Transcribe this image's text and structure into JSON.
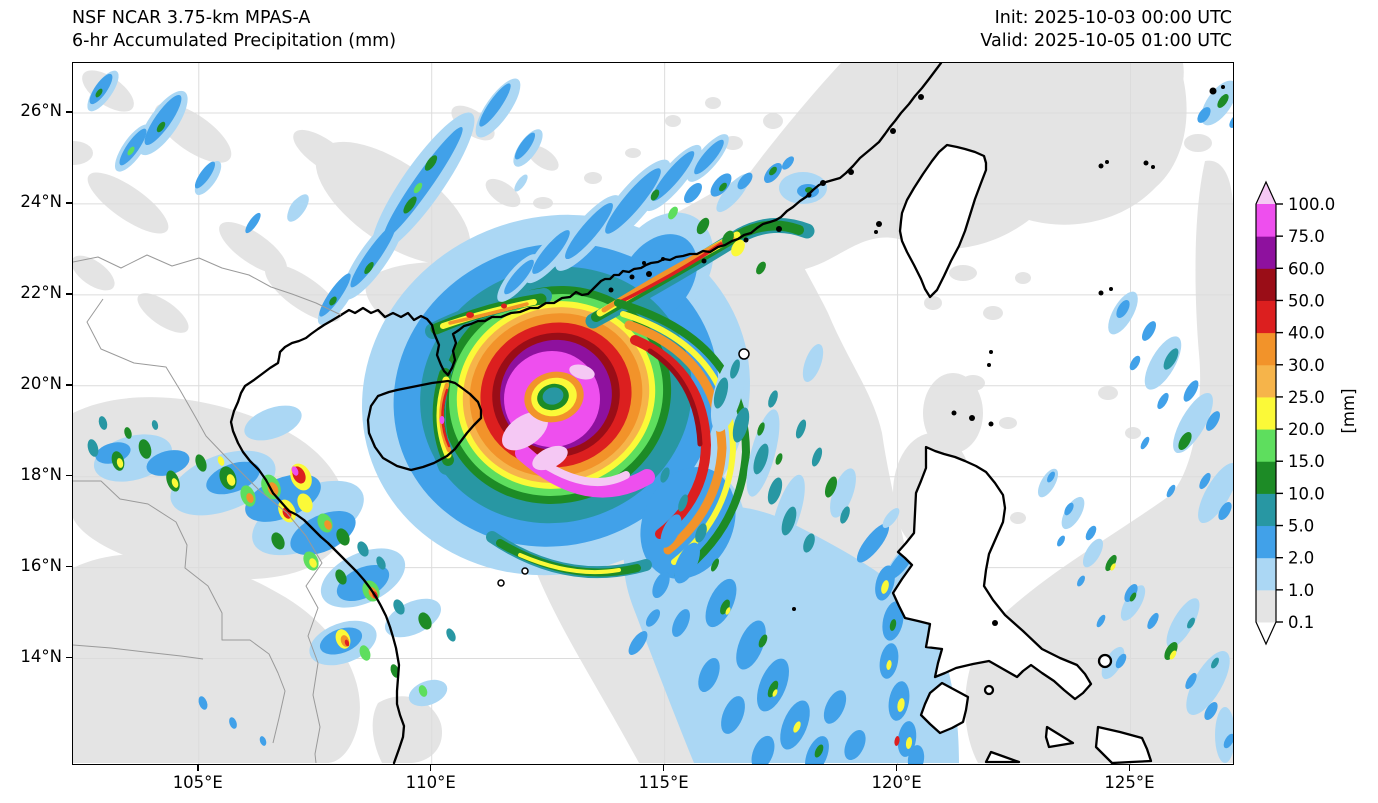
{
  "header": {
    "title_line1": "NSF NCAR 3.75-km MPAS-A",
    "title_line2": "6-hr Accumulated Precipitation (mm)",
    "init": "Init: 2025-10-03 00:00 UTC",
    "valid": "Valid: 2025-10-05 01:00 UTC"
  },
  "axes": {
    "extent": {
      "lon_min": 102.3,
      "lon_max": 127.2,
      "lat_min": 11.68,
      "lat_max": 27.1
    },
    "lon_ticks": [
      {
        "label": "105°E",
        "deg": 105
      },
      {
        "label": "110°E",
        "deg": 110
      },
      {
        "label": "115°E",
        "deg": 115
      },
      {
        "label": "120°E",
        "deg": 120
      },
      {
        "label": "125°E",
        "deg": 125
      }
    ],
    "lat_ticks": [
      {
        "label": "26°N",
        "deg": 26
      },
      {
        "label": "24°N",
        "deg": 24
      },
      {
        "label": "22°N",
        "deg": 22
      },
      {
        "label": "20°N",
        "deg": 20
      },
      {
        "label": "18°N",
        "deg": 18
      },
      {
        "label": "16°N",
        "deg": 16
      },
      {
        "label": "14°N",
        "deg": 14
      }
    ]
  },
  "colorbar": {
    "unit_label": "[mm]",
    "tick_labels": [
      "0.1",
      "1.0",
      "2.0",
      "5.0",
      "10.0",
      "15.0",
      "20.0",
      "25.0",
      "30.0",
      "40.0",
      "50.0",
      "60.0",
      "75.0",
      "100.0"
    ],
    "segment_colors": [
      "#e4e4e4",
      "#abd7f4",
      "#41a1e9",
      "#2897a3",
      "#1d8b26",
      "#5ede5e",
      "#fbf938",
      "#f6b44a",
      "#f2932a",
      "#dc1f1f",
      "#9a0d17",
      "#8e119e",
      "#ee4fee"
    ],
    "over_color": "#f5c8f4",
    "under_color": "#ffffff"
  },
  "chart_data": {
    "type": "precipitation_map",
    "model": "NSF NCAR 3.75-km MPAS-A",
    "field": "6-hr Accumulated Precipitation",
    "units": "mm",
    "init_time": "2025-10-03 00:00 UTC",
    "valid_time": "2025-10-05 01:00 UTC",
    "map_extent_deg": {
      "west": 102.3,
      "east": 127.2,
      "south": 11.68,
      "north": 27.1
    },
    "contour_levels_mm": [
      0.1,
      1.0,
      2.0,
      5.0,
      10.0,
      15.0,
      20.0,
      25.0,
      30.0,
      40.0,
      50.0,
      60.0,
      75.0,
      100.0
    ],
    "level_colors": [
      "#e4e4e4",
      "#abd7f4",
      "#41a1e9",
      "#2897a3",
      "#1d8b26",
      "#5ede5e",
      "#fbf938",
      "#f6b44a",
      "#f2932a",
      "#dc1f1f",
      "#9a0d17",
      "#8e119e",
      "#ee4fee"
    ],
    "visible_features": [
      "Intense tropical cyclone rainfall maximum (>100 mm) centered near 112.5E 19.7N over the northern South China Sea east of Hainan",
      "Spiral rainbands reaching the Guangdong coast and western Hainan",
      "Broad light-blue rainband (2-5 mm) stretching southeast toward Luzon",
      "Scattered convective cells (5-50 mm) over Vietnam and Laos",
      "Scattered light showers east of Taiwan and east of the Philippines",
      "Widespread 0.1-1 mm areas shaded light gray"
    ]
  }
}
